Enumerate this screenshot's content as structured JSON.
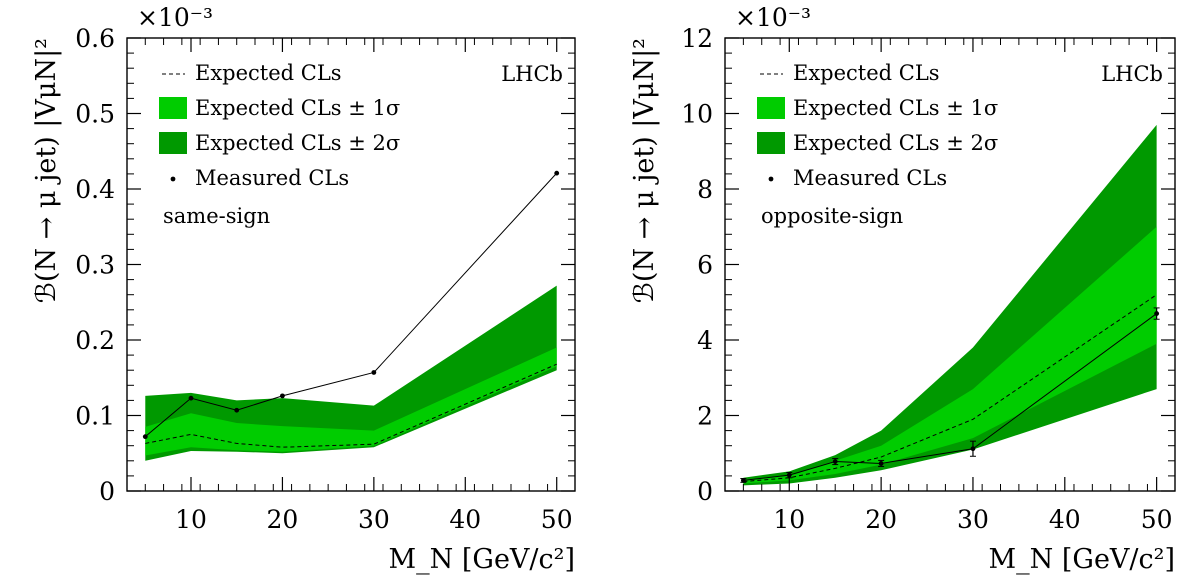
{
  "chart_data": [
    {
      "type": "area",
      "scale_label": "×10⁻³",
      "ylabel": "ℬ(N → μ jet) |VμN|²",
      "xlabel": "M_N [GeV/c²]",
      "xlim": [
        3,
        52
      ],
      "ylim": [
        0,
        0.6
      ],
      "xticks": [
        "10",
        "20",
        "30",
        "40",
        "50"
      ],
      "yticks": [
        "0",
        "0.1",
        "0.2",
        "0.3",
        "0.4",
        "0.5",
        "0.6"
      ],
      "ytick_values": [
        0,
        0.1,
        0.2,
        0.3,
        0.4,
        0.5,
        0.6
      ],
      "xtick_values": [
        10,
        20,
        30,
        40,
        50
      ],
      "legend": {
        "expected": "Expected CLs",
        "band1": "Expected CLs ± 1σ",
        "band2": "Expected CLs ± 2σ",
        "measured": "Measured CLs"
      },
      "experiment": "LHCb",
      "annotation": "same-sign",
      "x": [
        5,
        10,
        15,
        20,
        30,
        50
      ],
      "expected": [
        0.063,
        0.075,
        0.063,
        0.058,
        0.062,
        0.168
      ],
      "band1_low": [
        0.047,
        0.058,
        0.054,
        0.052,
        0.06,
        0.165
      ],
      "band1_high": [
        0.085,
        0.103,
        0.09,
        0.086,
        0.08,
        0.19
      ],
      "band2_low": [
        0.04,
        0.053,
        0.052,
        0.05,
        0.058,
        0.16
      ],
      "band2_high": [
        0.126,
        0.13,
        0.12,
        0.123,
        0.113,
        0.272
      ],
      "measured": [
        0.072,
        0.123,
        0.107,
        0.126,
        0.157,
        0.421
      ],
      "colors": {
        "band1": "#00cc00",
        "band2": "#009900",
        "line": "#000000"
      }
    },
    {
      "type": "area",
      "scale_label": "×10⁻³",
      "ylabel": "ℬ(N → μ jet) |VμN|²",
      "xlabel": "M_N [GeV/c²]",
      "xlim": [
        3,
        52
      ],
      "ylim": [
        0,
        12
      ],
      "xticks": [
        "10",
        "20",
        "30",
        "40",
        "50"
      ],
      "yticks": [
        "0",
        "2",
        "4",
        "6",
        "8",
        "10",
        "12"
      ],
      "ytick_values": [
        0,
        2,
        4,
        6,
        8,
        10,
        12
      ],
      "xtick_values": [
        10,
        20,
        30,
        40,
        50
      ],
      "legend": {
        "expected": "Expected CLs",
        "band1": "Expected CLs ± 1σ",
        "band2": "Expected CLs ± 2σ",
        "measured": "Measured CLs"
      },
      "experiment": "LHCb",
      "annotation": "opposite-sign",
      "x": [
        5,
        10,
        15,
        20,
        30,
        50
      ],
      "expected": [
        0.25,
        0.35,
        0.6,
        0.9,
        1.9,
        5.2
      ],
      "band1_low": [
        0.2,
        0.28,
        0.45,
        0.7,
        1.4,
        3.9
      ],
      "band1_high": [
        0.3,
        0.43,
        0.8,
        1.2,
        2.7,
        7.0
      ],
      "band2_low": [
        0.15,
        0.2,
        0.35,
        0.55,
        1.1,
        2.7
      ],
      "band2_high": [
        0.35,
        0.52,
        0.95,
        1.6,
        3.8,
        9.7
      ],
      "measured": [
        0.28,
        0.42,
        0.78,
        0.73,
        1.12,
        4.7
      ],
      "measured_err": [
        0.05,
        0.07,
        0.08,
        0.08,
        0.2,
        0.15
      ],
      "colors": {
        "band1": "#00cc00",
        "band2": "#009900",
        "line": "#000000"
      }
    }
  ]
}
